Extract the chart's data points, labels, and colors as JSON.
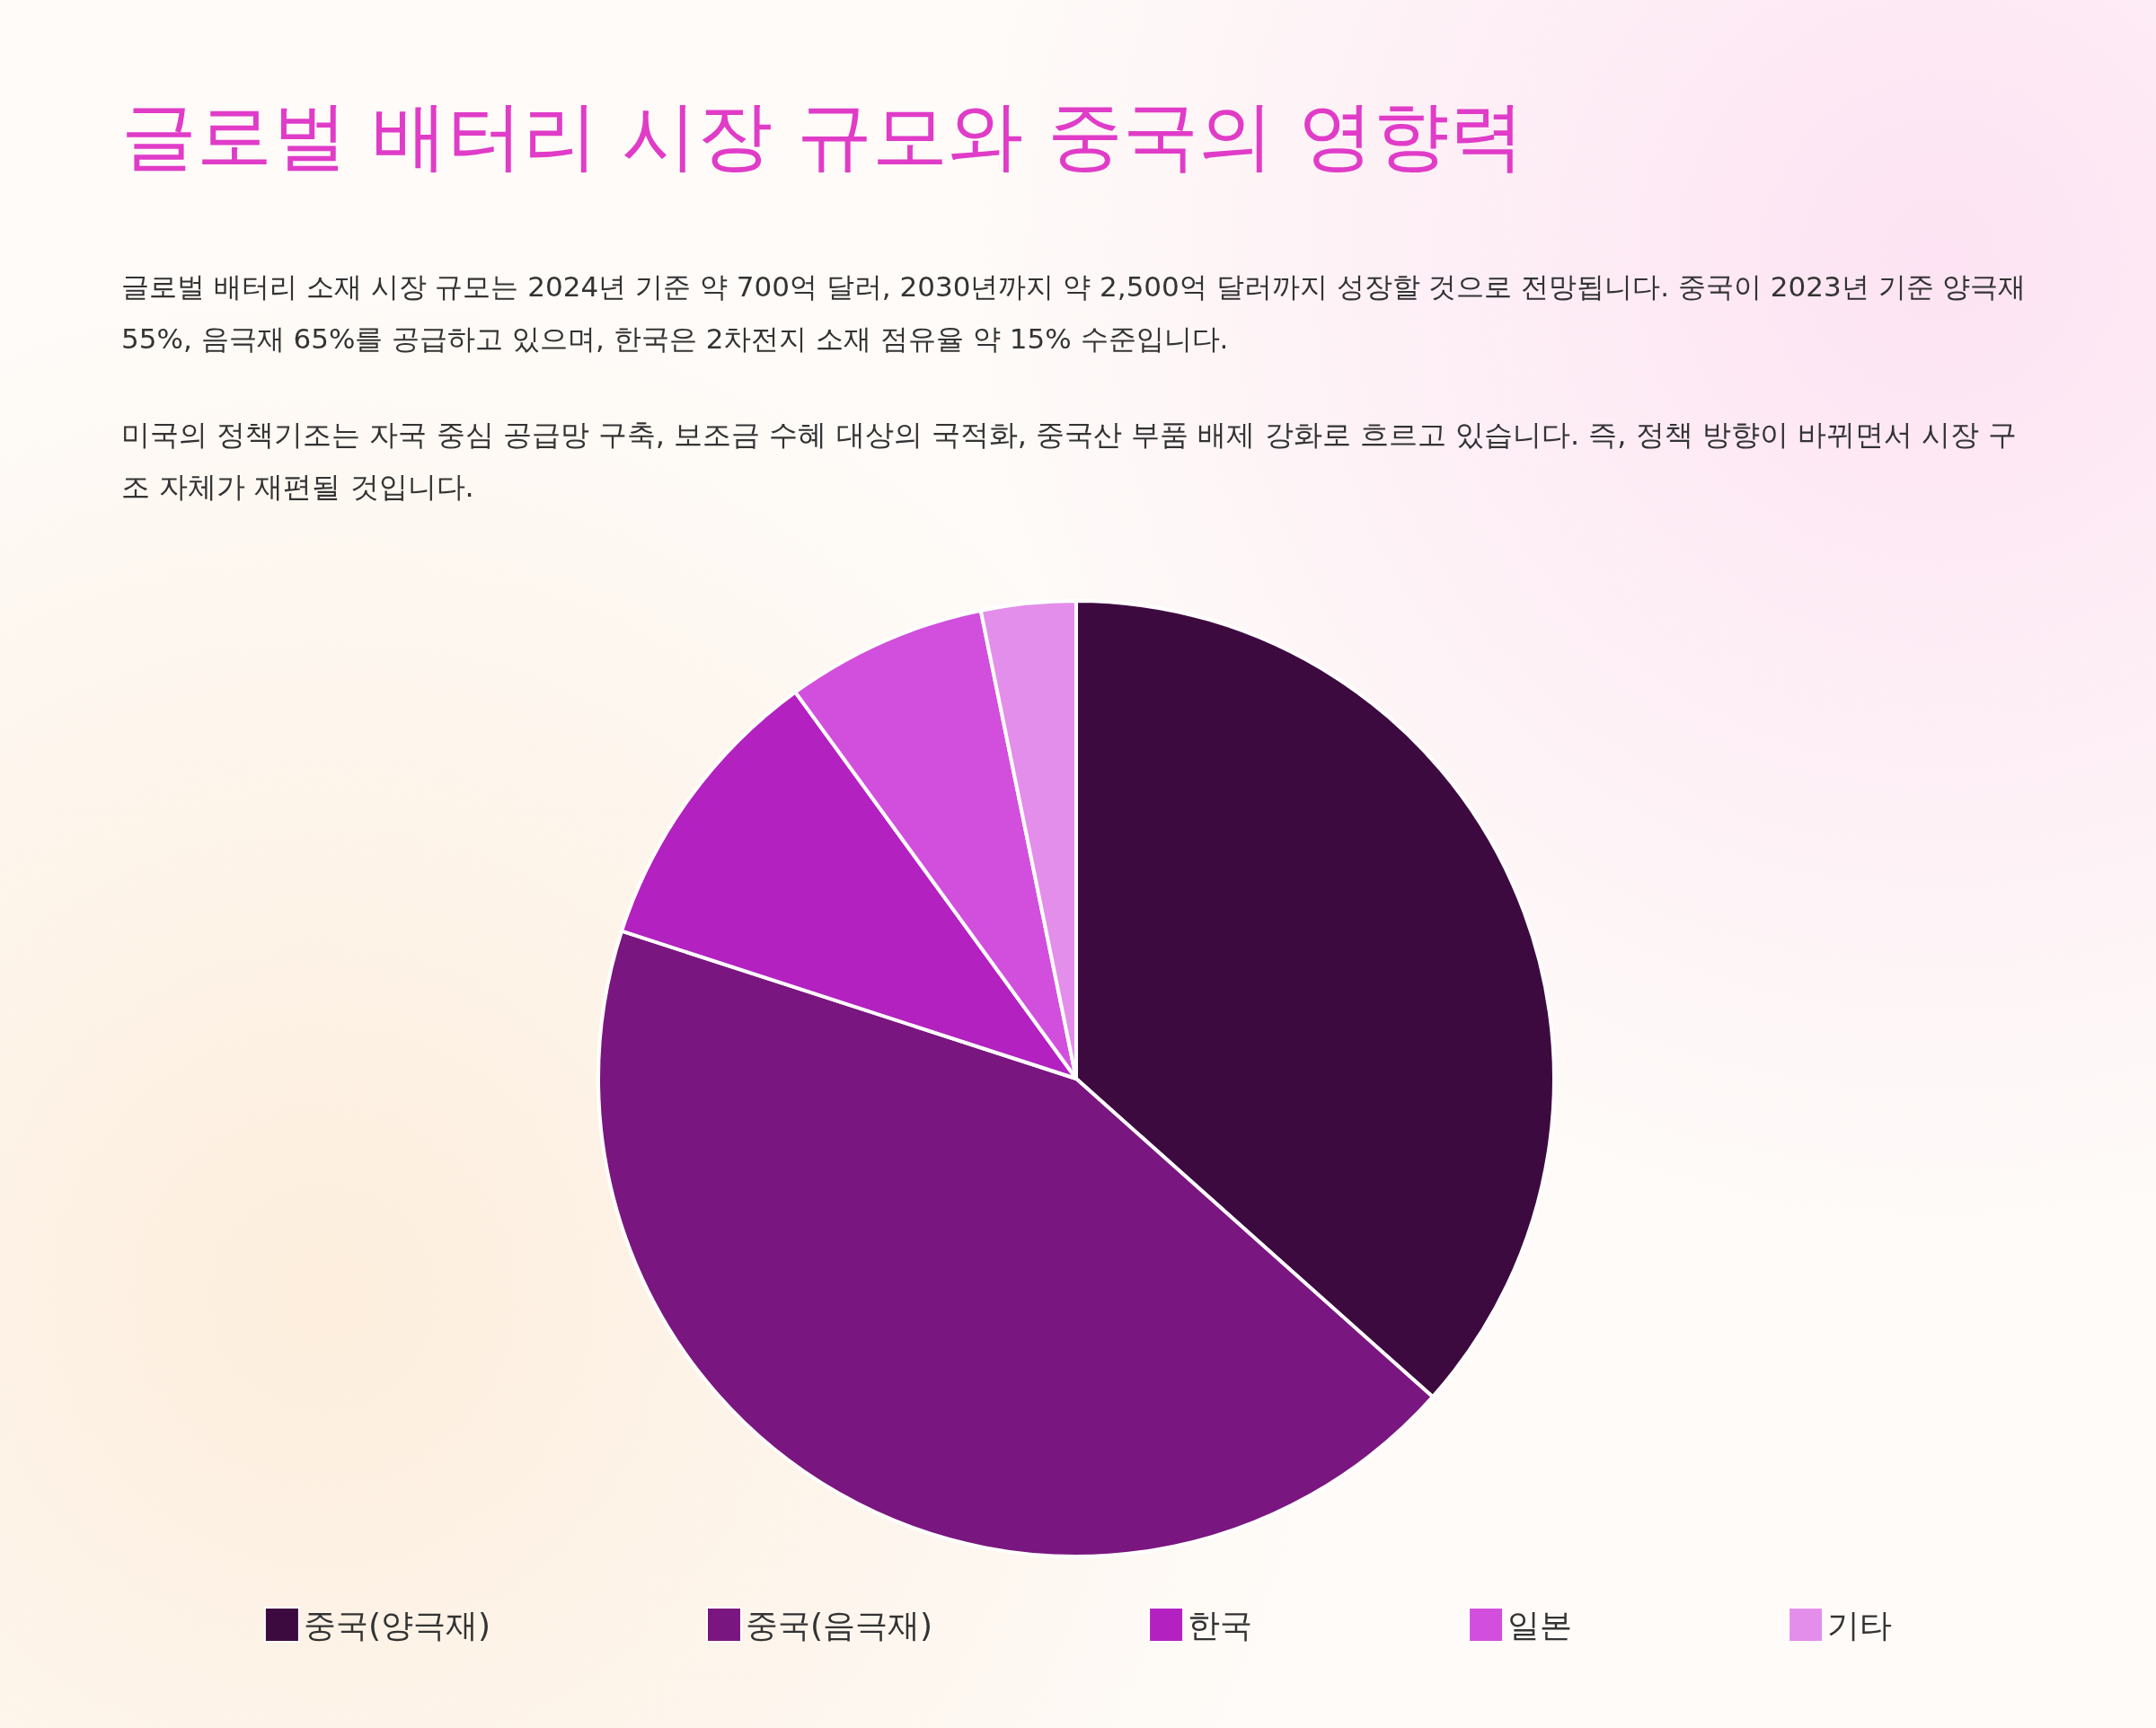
{
  "chart_data": {
    "type": "pie",
    "title": "글로벌 배터리 시장 규모와 중국의 영향력",
    "subtitle": "글로벌 배터리 소재 시장 규모는 2024년 기준 약 700억 달러, 2030년까지 약 2,500억 달러까지 성장할 것으로 전망됩니다. 중국이 2023년 기준 양극재 55%, 음극재 65%를 공급하고 있으며, 한국은 2차전지 소재 점유율 약 15% 수준입니다.",
    "annotations": [
      "미국의 정책기조는 자국 중심 공급망 구축, 보조금 수혜 대상의 국적화, 중국산 부품 배제 강화로 흐르고 있습니다. 즉, 정책 방향이 바뀌면서 시장 구조 자체가 재편될 것입니다."
    ],
    "categories": [
      "중국(양극재)",
      "중국(음극재)",
      "한국",
      "일본",
      "기타"
    ],
    "values": [
      36.6,
      43.4,
      10,
      6.8,
      3.2
    ],
    "colors": [
      "#3d0a40",
      "#7a1680",
      "#b321c0",
      "#d24fdd",
      "#e38eea"
    ],
    "legend": "bottom"
  }
}
